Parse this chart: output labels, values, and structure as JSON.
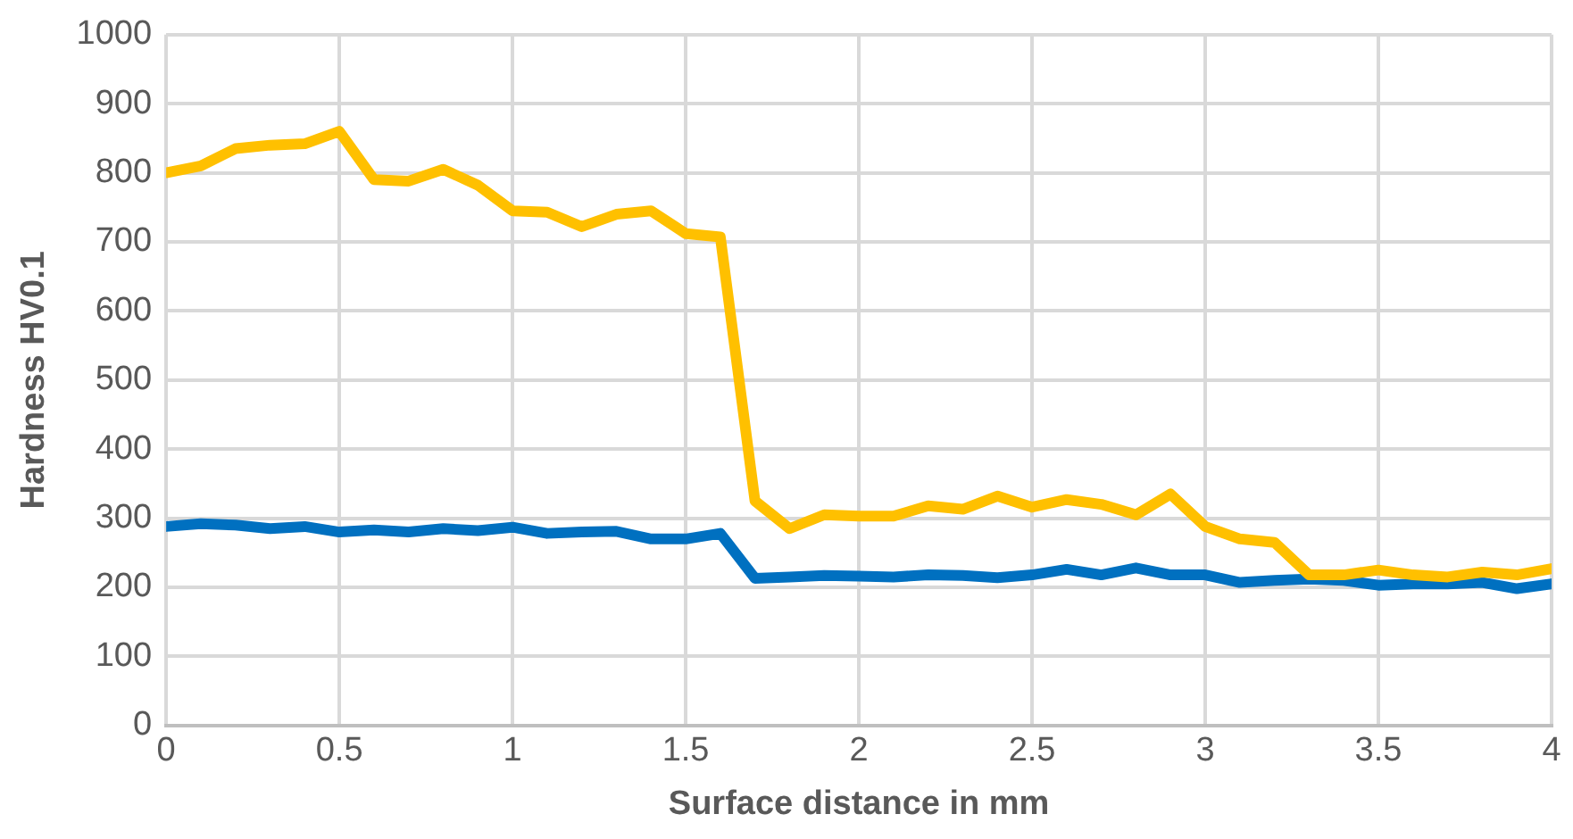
{
  "chart_data": {
    "type": "line",
    "xlabel": "Surface distance in mm",
    "ylabel": "Hardness HV0.1",
    "x": [
      0,
      0.1,
      0.2,
      0.3,
      0.4,
      0.5,
      0.6,
      0.7,
      0.8,
      0.9,
      1,
      1.1,
      1.2,
      1.3,
      1.4,
      1.5,
      1.6,
      1.7,
      1.8,
      1.9,
      2,
      2.1,
      2.2,
      2.3,
      2.4,
      2.5,
      2.6,
      2.7,
      2.8,
      2.9,
      3,
      3.1,
      3.2,
      3.3,
      3.4,
      3.5,
      3.6,
      3.7,
      3.8,
      3.9,
      4
    ],
    "series": [
      {
        "color": "#ffc000",
        "values": [
          800,
          810,
          835,
          840,
          842,
          860,
          790,
          788,
          805,
          782,
          745,
          743,
          722,
          740,
          745,
          712,
          707,
          325,
          285,
          305,
          303,
          303,
          318,
          313,
          332,
          316,
          327,
          320,
          305,
          335,
          288,
          270,
          265,
          218,
          218,
          225,
          218,
          215,
          222,
          218,
          227
        ]
      },
      {
        "color": "#0070c0",
        "values": [
          288,
          292,
          290,
          285,
          288,
          280,
          283,
          280,
          285,
          282,
          287,
          278,
          280,
          281,
          270,
          270,
          278,
          213,
          215,
          217,
          216,
          215,
          218,
          217,
          214,
          218,
          226,
          218,
          228,
          218,
          218,
          207,
          210,
          212,
          210,
          203,
          205,
          205,
          207,
          198,
          205
        ]
      }
    ],
    "xlim": [
      0,
      4
    ],
    "xticks": [
      0,
      0.5,
      1,
      1.5,
      2,
      2.5,
      3,
      3.5,
      4
    ],
    "ylim": [
      0,
      1000
    ],
    "yticks": [
      0,
      100,
      200,
      300,
      400,
      500,
      600,
      700,
      800,
      900,
      1000
    ],
    "grid": true,
    "legend": false,
    "marker": "none",
    "line_style": "solid"
  }
}
